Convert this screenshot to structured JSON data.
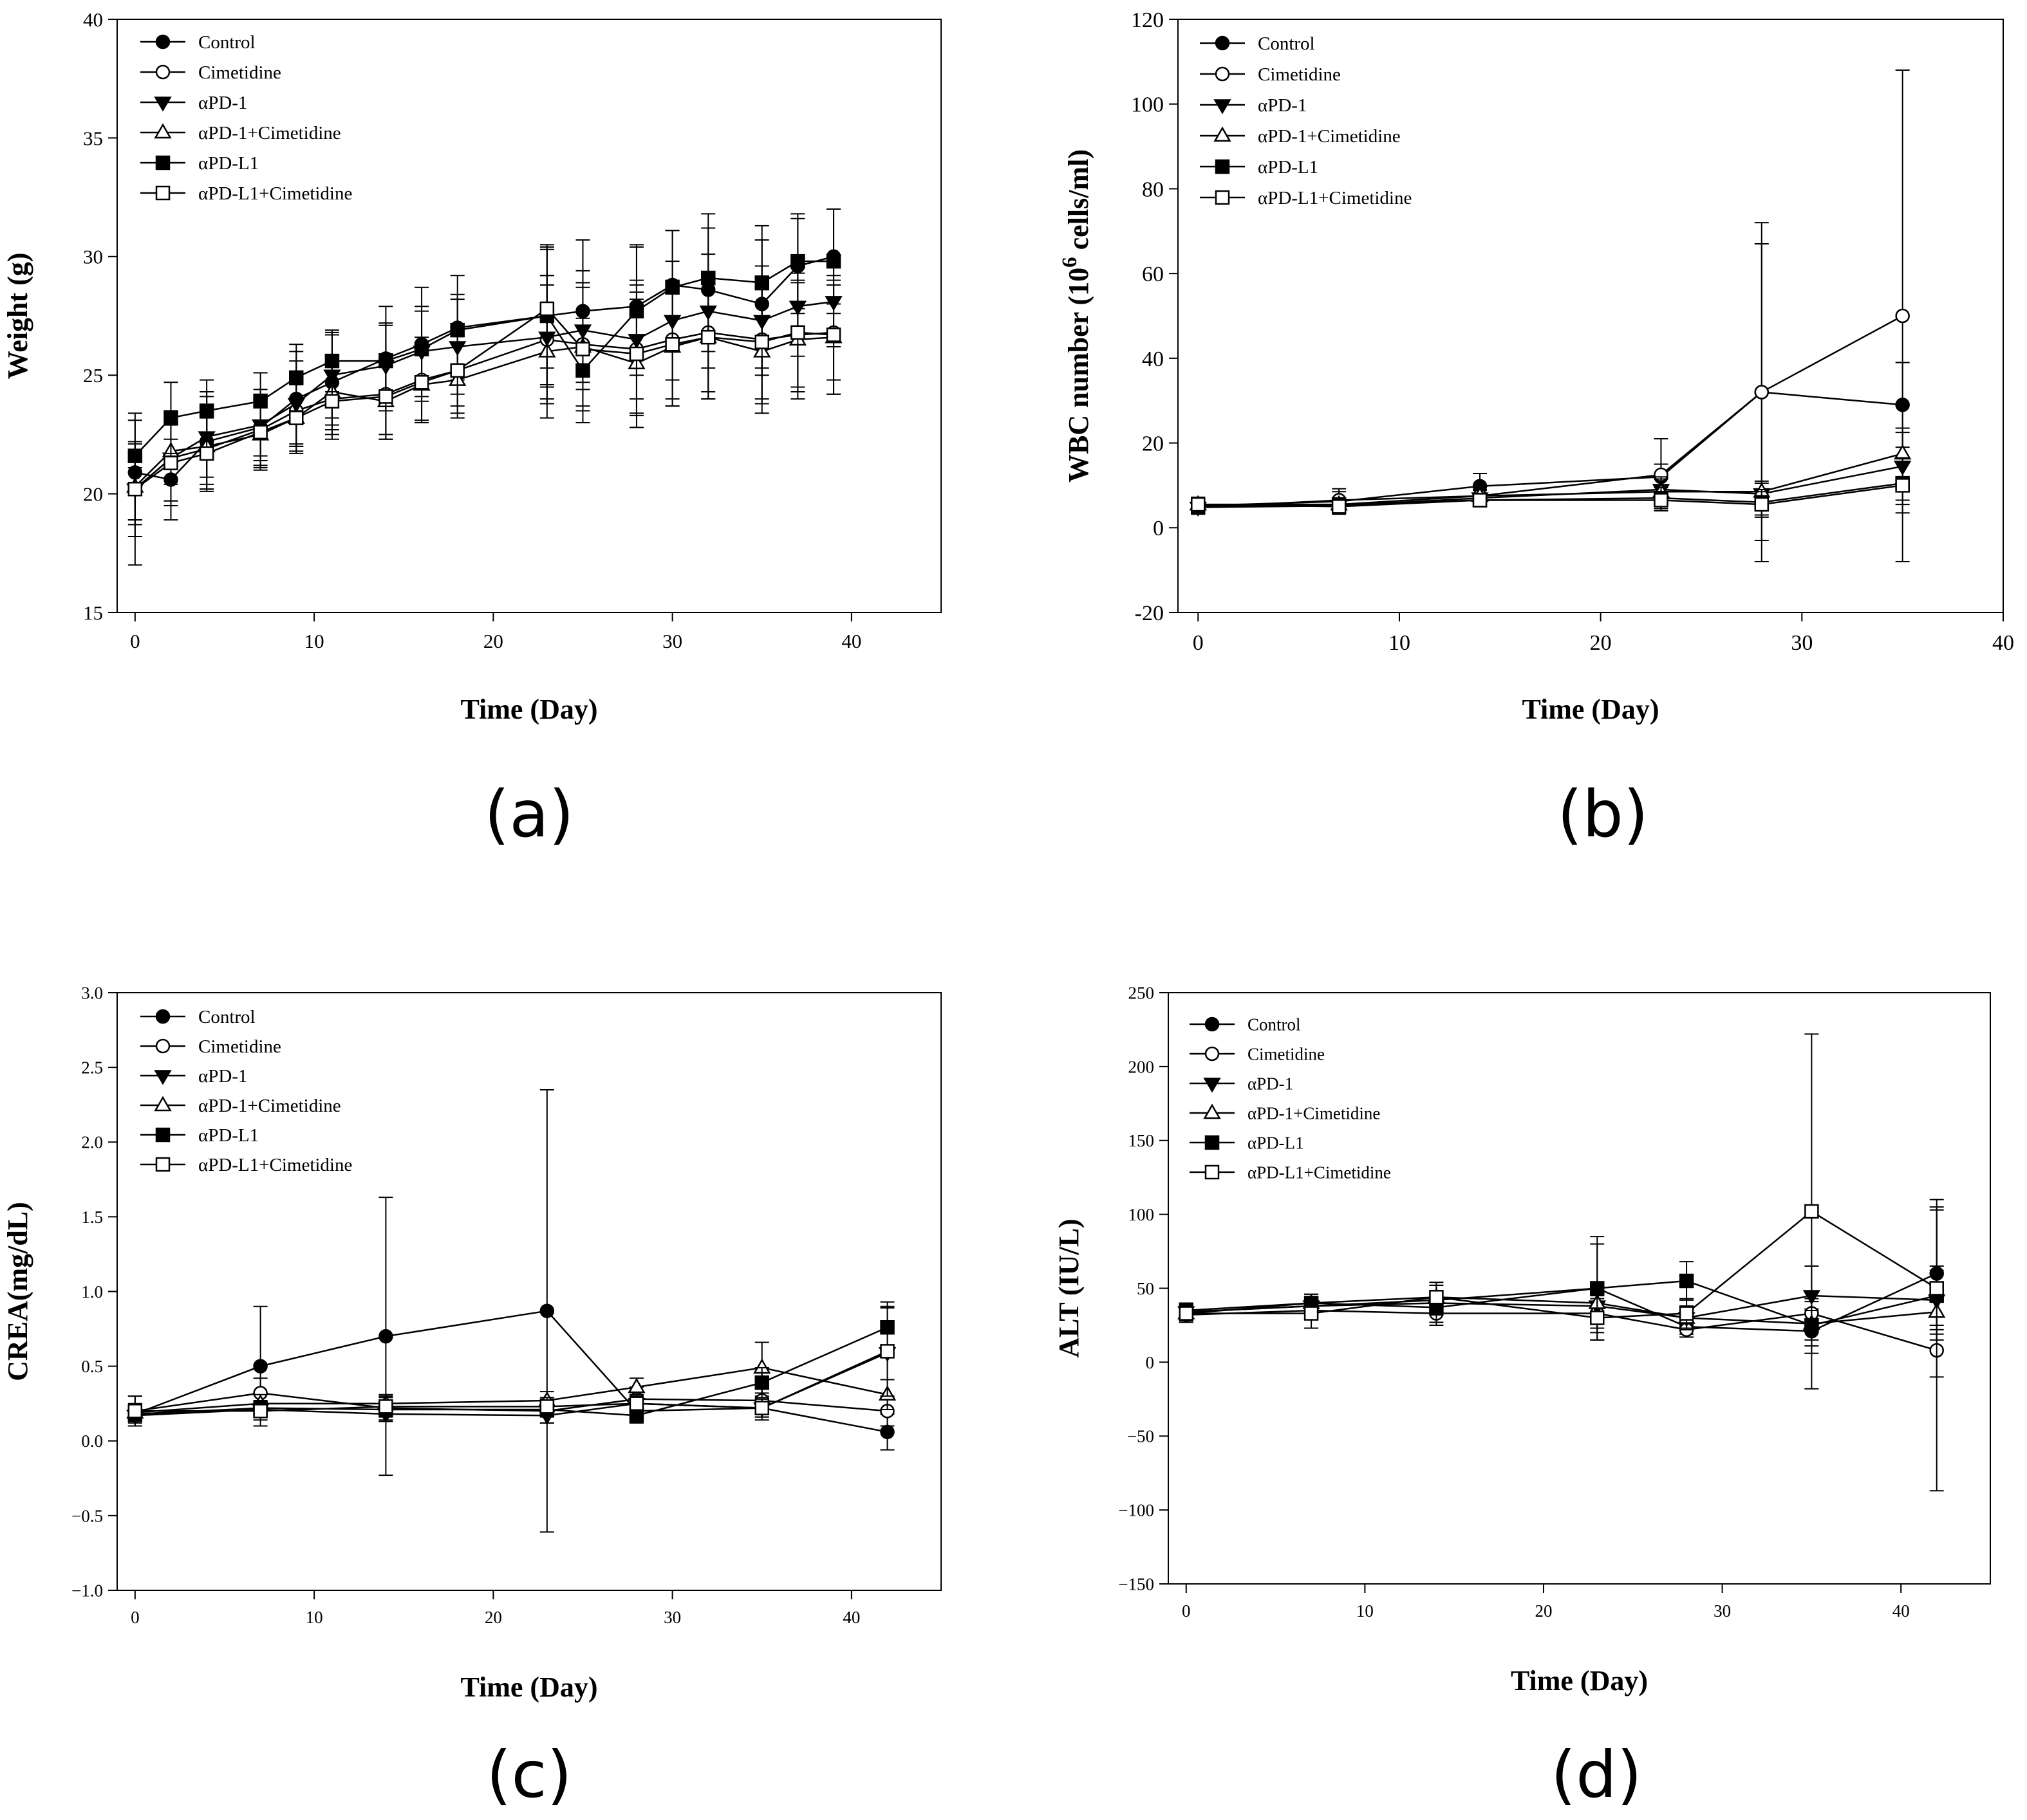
{
  "legend_labels": [
    "Control",
    "Cimetidine",
    "αPD-1",
    "αPD-1+Cimetidine",
    "αPD-L1",
    "αPD-L1+Cimetidine"
  ],
  "chart_data": [
    {
      "id": "a",
      "type": "line",
      "panel_label": "(a)",
      "xlabel": "Time (Day)",
      "ylabel": "Weight (g)",
      "xlim": [
        -1,
        45
      ],
      "ylim": [
        15,
        40
      ],
      "xticks": [
        "0",
        "10",
        "20",
        "30",
        "40"
      ],
      "xtick_values": [
        0,
        10,
        20,
        30,
        40
      ],
      "yticks": [
        "15",
        "20",
        "25",
        "30",
        "35",
        "40"
      ],
      "ytick_values": [
        15,
        20,
        25,
        30,
        35,
        40
      ],
      "legend": "top-left",
      "series": [
        {
          "name": "Control",
          "marker": "circle-filled",
          "x": [
            0,
            2,
            4,
            7,
            9,
            11,
            14,
            16,
            18,
            23,
            25,
            28,
            30,
            32,
            35,
            37,
            39
          ],
          "y": [
            20.9,
            20.6,
            22.2,
            22.8,
            24.0,
            24.7,
            25.7,
            26.3,
            27.0,
            27.5,
            27.7,
            27.9,
            28.8,
            28.6,
            28.0,
            29.6,
            30.0
          ],
          "err": [
            2.2,
            1.7,
            2.1,
            1.2,
            2.0,
            2.0,
            2.2,
            2.4,
            2.2,
            2.9,
            3.0,
            2.6,
            2.3,
            2.6,
            2.7,
            2.0,
            2.0
          ]
        },
        {
          "name": "Cimetidine",
          "marker": "circle-open",
          "x": [
            0,
            2,
            4,
            7,
            9,
            11,
            14,
            16,
            18,
            23,
            25,
            28,
            30,
            32,
            35,
            37,
            39
          ],
          "y": [
            20.2,
            21.5,
            21.9,
            22.7,
            23.5,
            24.0,
            24.2,
            24.8,
            25.2,
            26.5,
            26.3,
            26.1,
            26.5,
            26.8,
            26.5,
            26.7,
            26.8
          ],
          "err": [
            3.2,
            2.0,
            1.7,
            1.5,
            1.4,
            1.5,
            1.7,
            1.8,
            1.8,
            2.7,
            2.6,
            2.7,
            2.5,
            2.5,
            2.5,
            2.2,
            2.0
          ]
        },
        {
          "name": "αPD-1",
          "marker": "triangle-down-filled",
          "x": [
            0,
            2,
            4,
            7,
            9,
            11,
            14,
            16,
            18,
            23,
            25,
            28,
            30,
            32,
            35,
            37,
            39
          ],
          "y": [
            20.2,
            21.5,
            22.4,
            22.9,
            23.8,
            25.0,
            25.4,
            26.0,
            26.2,
            26.6,
            26.9,
            26.5,
            27.3,
            27.7,
            27.3,
            27.9,
            28.1
          ],
          "err": [
            2.0,
            1.8,
            1.7,
            1.5,
            1.8,
            1.8,
            1.7,
            1.9,
            2.0,
            2.6,
            2.5,
            2.5,
            2.5,
            2.4,
            2.3,
            2.1,
            1.9
          ]
        },
        {
          "name": "αPD-1+Cimetidine",
          "marker": "triangle-up-open",
          "x": [
            0,
            2,
            4,
            7,
            9,
            11,
            14,
            16,
            18,
            23,
            25,
            28,
            30,
            32,
            35,
            37,
            39
          ],
          "y": [
            20.3,
            21.8,
            22.0,
            22.5,
            23.2,
            24.3,
            23.9,
            24.6,
            24.8,
            26.0,
            26.2,
            25.5,
            26.2,
            26.6,
            26.0,
            26.5,
            26.6
          ],
          "err": [
            1.4,
            1.4,
            1.6,
            1.5,
            1.4,
            1.4,
            1.6,
            1.6,
            1.6,
            2.8,
            2.7,
            2.7,
            2.5,
            2.6,
            2.6,
            2.5,
            2.4
          ]
        },
        {
          "name": "αPD-L1",
          "marker": "square-filled",
          "x": [
            0,
            2,
            4,
            7,
            9,
            11,
            14,
            16,
            18,
            23,
            25,
            28,
            30,
            32,
            35,
            37,
            39
          ],
          "y": [
            21.6,
            23.2,
            23.5,
            23.9,
            24.9,
            25.6,
            25.6,
            26.1,
            26.9,
            27.5,
            25.2,
            27.7,
            28.7,
            29.1,
            28.9,
            29.8,
            29.8
          ],
          "err": [
            0.5,
            1.5,
            1.3,
            1.2,
            1.4,
            1.3,
            1.6,
            1.6,
            1.5,
            3.0,
            2.2,
            2.7,
            2.4,
            2.7,
            2.4,
            2.0,
            2.2
          ]
        },
        {
          "name": "αPD-L1+Cimetidine",
          "marker": "square-open",
          "x": [
            0,
            2,
            4,
            7,
            9,
            11,
            14,
            16,
            18,
            23,
            25,
            28,
            30,
            32,
            35,
            37,
            39
          ],
          "y": [
            20.2,
            21.3,
            21.7,
            22.6,
            23.2,
            23.9,
            24.1,
            24.7,
            25.2,
            27.8,
            26.1,
            25.9,
            26.3,
            26.6,
            26.4,
            26.8,
            26.7
          ],
          "err": [
            1.3,
            1.6,
            1.5,
            1.5,
            1.5,
            1.6,
            1.8,
            1.6,
            1.5,
            2.5,
            2.6,
            2.6,
            2.6,
            2.6,
            2.6,
            2.5,
            2.5
          ]
        }
      ]
    },
    {
      "id": "b",
      "type": "line",
      "panel_label": "(b)",
      "xlabel": "Time (Day)",
      "ylabel_main": "WBC number (10",
      "ylabel_sup": "6",
      "ylabel_tail": " cells/ml)",
      "xlim": [
        -1,
        40
      ],
      "ylim": [
        -20,
        120
      ],
      "xticks": [
        "0",
        "10",
        "20",
        "30",
        "40"
      ],
      "xtick_values": [
        0,
        10,
        20,
        30,
        40
      ],
      "yticks": [
        "-20",
        "0",
        "20",
        "40",
        "60",
        "80",
        "100",
        "120"
      ],
      "ytick_values": [
        -20,
        0,
        20,
        40,
        60,
        80,
        100,
        120
      ],
      "legend": "top-left",
      "series": [
        {
          "name": "Control",
          "marker": "circle-filled",
          "x": [
            0,
            7,
            14,
            23,
            28,
            35
          ],
          "y": [
            5.2,
            6.2,
            9.8,
            12.0,
            32.0,
            29.0
          ],
          "err": [
            2.0,
            3.0,
            3.0,
            3.0,
            40.0,
            10.0
          ]
        },
        {
          "name": "Cimetidine",
          "marker": "circle-open",
          "x": [
            0,
            7,
            14,
            23,
            28,
            35
          ],
          "y": [
            4.8,
            6.5,
            7.5,
            12.5,
            32.0,
            50.0
          ],
          "err": [
            1.5,
            2.0,
            2.5,
            8.5,
            35.0,
            58.0
          ]
        },
        {
          "name": "αPD-1",
          "marker": "triangle-down-filled",
          "x": [
            0,
            7,
            14,
            23,
            28,
            35
          ],
          "y": [
            4.8,
            5.2,
            7.0,
            9.0,
            8.0,
            14.5
          ],
          "err": [
            1.2,
            1.5,
            1.8,
            3.0,
            2.5,
            8.0
          ]
        },
        {
          "name": "αPD-1+Cimetidine",
          "marker": "triangle-up-open",
          "x": [
            0,
            7,
            14,
            23,
            28,
            35
          ],
          "y": [
            5.5,
            5.5,
            7.5,
            8.5,
            8.5,
            17.5
          ],
          "err": [
            1.0,
            1.5,
            1.5,
            3.0,
            2.5,
            6.0
          ]
        },
        {
          "name": "αPD-L1",
          "marker": "square-filled",
          "x": [
            0,
            7,
            14,
            23,
            28,
            35
          ],
          "y": [
            5.0,
            5.5,
            6.5,
            7.0,
            6.0,
            10.5
          ],
          "err": [
            1.0,
            1.5,
            1.5,
            2.5,
            3.0,
            5.0
          ]
        },
        {
          "name": "αPD-L1+Cimetidine",
          "marker": "square-open",
          "x": [
            0,
            7,
            14,
            23,
            28,
            35
          ],
          "y": [
            5.5,
            5.0,
            6.5,
            6.5,
            5.5,
            10.0
          ],
          "err": [
            1.2,
            1.5,
            1.5,
            2.0,
            3.0,
            6.5
          ]
        }
      ]
    },
    {
      "id": "c",
      "type": "line",
      "panel_label": "(c)",
      "xlabel": "Time (Day)",
      "ylabel": "CREA(mg/dL)",
      "xlim": [
        -1,
        45
      ],
      "ylim": [
        -1.0,
        3.0
      ],
      "xticks": [
        "0",
        "10",
        "20",
        "30",
        "40"
      ],
      "xtick_values": [
        0,
        10,
        20,
        30,
        40
      ],
      "yticks": [
        "−1.0",
        "−0.5",
        "0.0",
        "0.5",
        "1.0",
        "1.5",
        "2.0",
        "2.5",
        "3.0"
      ],
      "ytick_values": [
        -1.0,
        -0.5,
        0.0,
        0.5,
        1.0,
        1.5,
        2.0,
        2.5,
        3.0
      ],
      "legend": "top-left",
      "series": [
        {
          "name": "Control",
          "marker": "circle-filled",
          "x": [
            0,
            7,
            14,
            23,
            28,
            35,
            42
          ],
          "y": [
            0.18,
            0.5,
            0.7,
            0.87,
            0.2,
            0.22,
            0.06
          ],
          "err": [
            0.05,
            0.4,
            0.93,
            1.48,
            0.06,
            0.08,
            0.12
          ]
        },
        {
          "name": "Cimetidine",
          "marker": "circle-open",
          "x": [
            0,
            7,
            14,
            23,
            28,
            35,
            42
          ],
          "y": [
            0.2,
            0.32,
            0.22,
            0.2,
            0.28,
            0.27,
            0.2
          ],
          "err": [
            0.1,
            0.1,
            0.08,
            0.08,
            0.08,
            0.08,
            0.1
          ]
        },
        {
          "name": "αPD-1",
          "marker": "triangle-down-filled",
          "x": [
            0,
            7,
            14,
            23,
            28,
            35,
            42
          ],
          "y": [
            0.17,
            0.21,
            0.18,
            0.17,
            0.25,
            0.22,
            0.59
          ],
          "err": [
            0.05,
            0.05,
            0.05,
            0.05,
            0.06,
            0.06,
            0.3
          ]
        },
        {
          "name": "αPD-1+Cimetidine",
          "marker": "triangle-up-open",
          "x": [
            0,
            7,
            14,
            23,
            28,
            35,
            42
          ],
          "y": [
            0.19,
            0.25,
            0.25,
            0.27,
            0.36,
            0.49,
            0.31
          ],
          "err": [
            0.06,
            0.06,
            0.06,
            0.06,
            0.06,
            0.17,
            0.1
          ]
        },
        {
          "name": "αPD-L1",
          "marker": "square-filled",
          "x": [
            0,
            7,
            14,
            23,
            28,
            35,
            42
          ],
          "y": [
            0.18,
            0.22,
            0.21,
            0.21,
            0.17,
            0.39,
            0.76
          ],
          "err": [
            0.05,
            0.05,
            0.05,
            0.05,
            0.05,
            0.1,
            0.17
          ]
        },
        {
          "name": "αPD-L1+Cimetidine",
          "marker": "square-open",
          "x": [
            0,
            7,
            14,
            23,
            28,
            35,
            42
          ],
          "y": [
            0.2,
            0.2,
            0.23,
            0.23,
            0.25,
            0.22,
            0.6
          ],
          "err": [
            0.1,
            0.06,
            0.06,
            0.06,
            0.06,
            0.06,
            0.3
          ]
        }
      ]
    },
    {
      "id": "d",
      "type": "line",
      "panel_label": "(d)",
      "xlabel": "Time (Day)",
      "ylabel": "ALT (IU/L)",
      "xlim": [
        -1,
        45
      ],
      "ylim": [
        -150,
        250
      ],
      "xticks": [
        "0",
        "10",
        "20",
        "30",
        "40"
      ],
      "xtick_values": [
        0,
        10,
        20,
        30,
        40
      ],
      "yticks": [
        "−150",
        "−100",
        "−50",
        "0",
        "50",
        "100",
        "150",
        "200",
        "250"
      ],
      "ytick_values": [
        -150,
        -100,
        -50,
        0,
        50,
        100,
        150,
        200,
        250
      ],
      "legend": "top-left",
      "series": [
        {
          "name": "Control",
          "marker": "circle-filled",
          "x": [
            0,
            7,
            14,
            23,
            28,
            35,
            42
          ],
          "y": [
            34,
            38,
            42,
            50,
            24,
            21,
            60
          ],
          "err": [
            5,
            6,
            10,
            35,
            5,
            15,
            45
          ]
        },
        {
          "name": "Cimetidine",
          "marker": "circle-open",
          "x": [
            0,
            7,
            14,
            23,
            28,
            35,
            42
          ],
          "y": [
            32,
            35,
            33,
            33,
            22,
            33,
            8
          ],
          "err": [
            5,
            5,
            8,
            10,
            5,
            10,
            95
          ]
        },
        {
          "name": "αPD-1",
          "marker": "triangle-down-filled",
          "x": [
            0,
            7,
            14,
            23,
            28,
            35,
            42
          ],
          "y": [
            34,
            38,
            40,
            38,
            30,
            45,
            42
          ],
          "err": [
            5,
            6,
            8,
            12,
            8,
            20,
            20
          ]
        },
        {
          "name": "αPD-1+Cimetidine",
          "marker": "triangle-up-open",
          "x": [
            0,
            7,
            14,
            23,
            28,
            35,
            42
          ],
          "y": [
            33,
            40,
            44,
            40,
            30,
            26,
            34
          ],
          "err": [
            5,
            6,
            8,
            12,
            8,
            15,
            15
          ]
        },
        {
          "name": "αPD-L1",
          "marker": "square-filled",
          "x": [
            0,
            7,
            14,
            23,
            28,
            35,
            42
          ],
          "y": [
            35,
            40,
            37,
            50,
            55,
            25,
            45
          ],
          "err": [
            5,
            6,
            10,
            30,
            13,
            10,
            20
          ]
        },
        {
          "name": "αPD-L1+Cimetidine",
          "marker": "square-open",
          "x": [
            0,
            7,
            14,
            23,
            28,
            35,
            42
          ],
          "y": [
            33,
            33,
            44,
            30,
            33,
            102,
            50
          ],
          "err": [
            5,
            10,
            10,
            15,
            10,
            120,
            60
          ]
        }
      ]
    }
  ]
}
